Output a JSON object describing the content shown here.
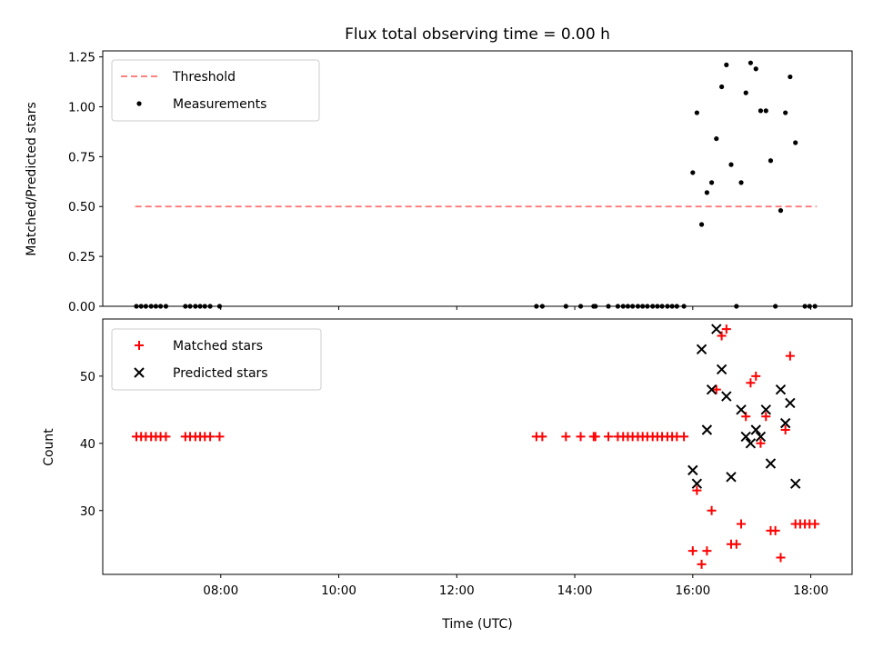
{
  "chart_data": [
    {
      "type": "scatter",
      "title": "Flux total observing time = 0.00 h",
      "xlabel": "",
      "ylabel": "Matched/Predicted stars",
      "xlim_hours": [
        6.0,
        18.7
      ],
      "ylim": [
        0.0,
        1.28
      ],
      "yticks": [
        0.0,
        0.25,
        0.5,
        0.75,
        1.0,
        1.25
      ],
      "ytick_labels": [
        "0.00",
        "0.25",
        "0.50",
        "0.75",
        "1.00",
        "1.25"
      ],
      "legend_position": "upper-left",
      "threshold": {
        "name": "Threshold",
        "color": "#ff7070",
        "style": "dashed",
        "value": 0.5,
        "x_start": 6.55,
        "x_end": 18.1
      },
      "series": [
        {
          "name": "Measurements",
          "color": "#000000",
          "marker": "dot",
          "points": [
            [
              6.57,
              0.0
            ],
            [
              6.65,
              0.0
            ],
            [
              6.73,
              0.0
            ],
            [
              6.82,
              0.0
            ],
            [
              6.9,
              0.0
            ],
            [
              6.98,
              0.0
            ],
            [
              7.07,
              0.0
            ],
            [
              7.4,
              0.0
            ],
            [
              7.48,
              0.0
            ],
            [
              7.57,
              0.0
            ],
            [
              7.65,
              0.0
            ],
            [
              7.73,
              0.0
            ],
            [
              7.82,
              0.0
            ],
            [
              7.98,
              0.0
            ],
            [
              13.35,
              0.0
            ],
            [
              13.45,
              0.0
            ],
            [
              13.85,
              0.0
            ],
            [
              14.1,
              0.0
            ],
            [
              14.32,
              0.0
            ],
            [
              14.35,
              0.0
            ],
            [
              14.57,
              0.0
            ],
            [
              14.73,
              0.0
            ],
            [
              14.82,
              0.0
            ],
            [
              14.9,
              0.0
            ],
            [
              14.98,
              0.0
            ],
            [
              15.07,
              0.0
            ],
            [
              15.15,
              0.0
            ],
            [
              15.23,
              0.0
            ],
            [
              15.32,
              0.0
            ],
            [
              15.4,
              0.0
            ],
            [
              15.48,
              0.0
            ],
            [
              15.57,
              0.0
            ],
            [
              15.65,
              0.0
            ],
            [
              15.73,
              0.0
            ],
            [
              15.85,
              0.0
            ],
            [
              16.0,
              0.67
            ],
            [
              16.07,
              0.97
            ],
            [
              16.15,
              0.41
            ],
            [
              16.24,
              0.57
            ],
            [
              16.32,
              0.62
            ],
            [
              16.4,
              0.84
            ],
            [
              16.49,
              1.1
            ],
            [
              16.57,
              1.21
            ],
            [
              16.65,
              0.71
            ],
            [
              16.74,
              0.0
            ],
            [
              16.82,
              0.62
            ],
            [
              16.9,
              1.07
            ],
            [
              16.98,
              1.22
            ],
            [
              17.07,
              1.19
            ],
            [
              17.15,
              0.98
            ],
            [
              17.24,
              0.98
            ],
            [
              17.32,
              0.73
            ],
            [
              17.4,
              0.0
            ],
            [
              17.49,
              0.48
            ],
            [
              17.57,
              0.97
            ],
            [
              17.65,
              1.15
            ],
            [
              17.74,
              0.82
            ],
            [
              17.9,
              0.0
            ],
            [
              17.98,
              0.0
            ],
            [
              18.07,
              0.0
            ]
          ]
        }
      ]
    },
    {
      "type": "scatter",
      "title": "",
      "xlabel": "Time (UTC)",
      "ylabel": "Count",
      "xlim_hours": [
        6.0,
        18.7
      ],
      "ylim": [
        20.5,
        58.5
      ],
      "yticks": [
        30,
        40,
        50
      ],
      "ytick_labels": [
        "30",
        "40",
        "50"
      ],
      "xticks_hours": [
        8,
        10,
        12,
        14,
        16,
        18
      ],
      "xtick_labels": [
        "08:00",
        "10:00",
        "12:00",
        "14:00",
        "16:00",
        "18:00"
      ],
      "legend_position": "upper-left",
      "series": [
        {
          "name": "Matched stars",
          "color": "#ff0000",
          "marker": "plus",
          "points": [
            [
              6.57,
              41
            ],
            [
              6.65,
              41
            ],
            [
              6.73,
              41
            ],
            [
              6.82,
              41
            ],
            [
              6.9,
              41
            ],
            [
              6.98,
              41
            ],
            [
              7.07,
              41
            ],
            [
              7.4,
              41
            ],
            [
              7.48,
              41
            ],
            [
              7.57,
              41
            ],
            [
              7.65,
              41
            ],
            [
              7.73,
              41
            ],
            [
              7.82,
              41
            ],
            [
              7.98,
              41
            ],
            [
              13.35,
              41
            ],
            [
              13.45,
              41
            ],
            [
              13.85,
              41
            ],
            [
              14.1,
              41
            ],
            [
              14.32,
              41
            ],
            [
              14.35,
              41
            ],
            [
              14.57,
              41
            ],
            [
              14.73,
              41
            ],
            [
              14.82,
              41
            ],
            [
              14.9,
              41
            ],
            [
              14.98,
              41
            ],
            [
              15.07,
              41
            ],
            [
              15.15,
              41
            ],
            [
              15.23,
              41
            ],
            [
              15.32,
              41
            ],
            [
              15.4,
              41
            ],
            [
              15.48,
              41
            ],
            [
              15.57,
              41
            ],
            [
              15.65,
              41
            ],
            [
              15.73,
              41
            ],
            [
              15.85,
              41
            ],
            [
              16.0,
              24
            ],
            [
              16.07,
              33
            ],
            [
              16.15,
              22
            ],
            [
              16.24,
              24
            ],
            [
              16.32,
              30
            ],
            [
              16.4,
              48
            ],
            [
              16.49,
              56
            ],
            [
              16.57,
              57
            ],
            [
              16.65,
              25
            ],
            [
              16.74,
              25
            ],
            [
              16.82,
              28
            ],
            [
              16.9,
              44
            ],
            [
              16.98,
              49
            ],
            [
              17.07,
              50
            ],
            [
              17.15,
              40
            ],
            [
              17.24,
              44
            ],
            [
              17.32,
              27
            ],
            [
              17.4,
              27
            ],
            [
              17.49,
              23
            ],
            [
              17.57,
              42
            ],
            [
              17.65,
              53
            ],
            [
              17.74,
              28
            ],
            [
              17.82,
              28
            ],
            [
              17.9,
              28
            ],
            [
              17.98,
              28
            ],
            [
              18.07,
              28
            ]
          ]
        },
        {
          "name": "Predicted stars",
          "color": "#000000",
          "marker": "x",
          "points": [
            [
              16.0,
              36
            ],
            [
              16.07,
              34
            ],
            [
              16.15,
              54
            ],
            [
              16.24,
              42
            ],
            [
              16.32,
              48
            ],
            [
              16.4,
              57
            ],
            [
              16.49,
              51
            ],
            [
              16.57,
              47
            ],
            [
              16.65,
              35
            ],
            [
              16.82,
              45
            ],
            [
              16.9,
              41
            ],
            [
              16.98,
              40
            ],
            [
              17.07,
              42
            ],
            [
              17.15,
              41
            ],
            [
              17.24,
              45
            ],
            [
              17.32,
              37
            ],
            [
              17.49,
              48
            ],
            [
              17.57,
              43
            ],
            [
              17.65,
              46
            ],
            [
              17.74,
              34
            ]
          ]
        }
      ]
    }
  ]
}
